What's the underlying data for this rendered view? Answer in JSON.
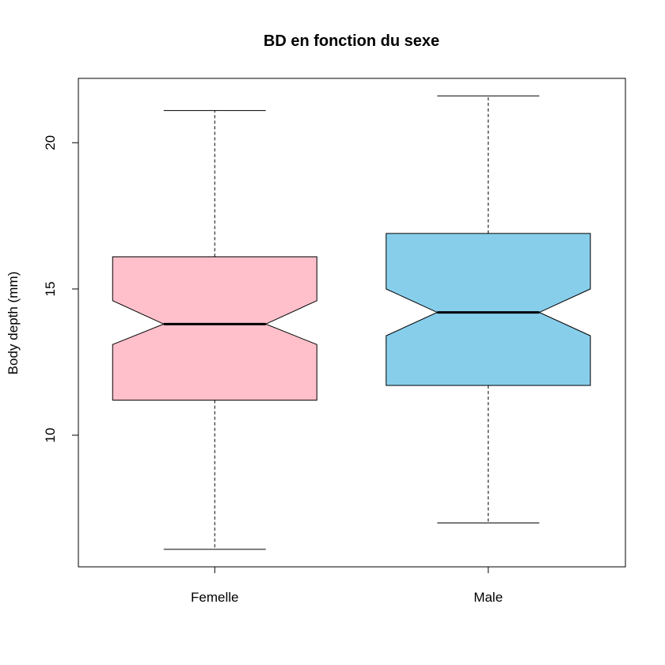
{
  "chart_data": {
    "type": "boxplot",
    "notched": true,
    "title": "BD en fonction du sexe",
    "xlabel": "",
    "ylabel": "Body depth (mm)",
    "ylim": [
      5.5,
      22.2
    ],
    "yticks": [
      "10",
      "15",
      "20"
    ],
    "categories": [
      "Femelle",
      "Male"
    ],
    "boxes": [
      {
        "category": "Femelle",
        "color": "#FFC0CB",
        "min": 6.1,
        "q1": 11.2,
        "median": 13.8,
        "q3": 16.1,
        "max": 21.1,
        "notch_low": 13.1,
        "notch_high": 14.6
      },
      {
        "category": "Male",
        "color": "#87CEEB",
        "min": 7.0,
        "q1": 11.7,
        "median": 14.2,
        "q3": 16.9,
        "max": 21.6,
        "notch_low": 13.4,
        "notch_high": 15.0
      }
    ]
  }
}
